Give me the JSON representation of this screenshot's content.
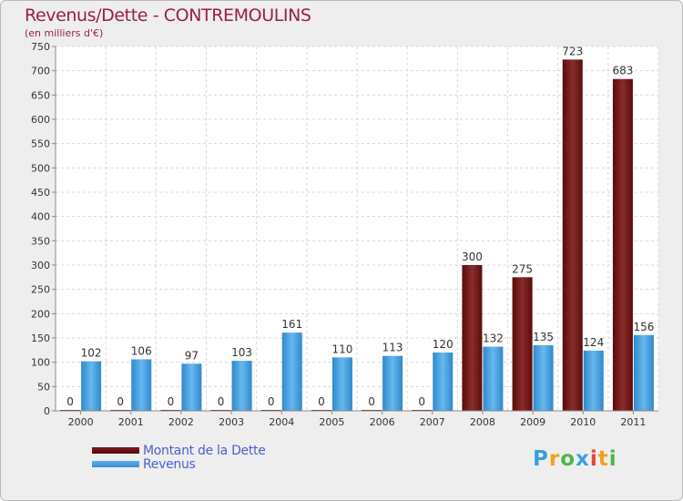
{
  "chart_data": {
    "type": "bar",
    "title": "Revenus/Dette - CONTREMOULINS",
    "subtitle": "(en milliers d'€)",
    "categories": [
      "2000",
      "2001",
      "2002",
      "2003",
      "2004",
      "2005",
      "2006",
      "2007",
      "2008",
      "2009",
      "2010",
      "2011"
    ],
    "series": [
      {
        "name": "Montant de la Dette",
        "color": "#7a1a1a",
        "values": [
          0,
          0,
          0,
          0,
          0,
          0,
          0,
          0,
          300,
          275,
          723,
          683
        ]
      },
      {
        "name": "Revenus",
        "color": "#3a98dc",
        "values": [
          102,
          106,
          97,
          103,
          161,
          110,
          113,
          120,
          132,
          135,
          124,
          156
        ]
      }
    ],
    "ylim": [
      0,
      750
    ],
    "yticks": [
      0,
      50,
      100,
      150,
      200,
      250,
      300,
      350,
      400,
      450,
      500,
      550,
      600,
      650,
      700,
      750
    ],
    "grid": true,
    "legend_position": "bottom-left"
  },
  "branding": {
    "logo_letters": [
      "P",
      "r",
      "o",
      "x",
      "i",
      "t",
      "i"
    ]
  }
}
